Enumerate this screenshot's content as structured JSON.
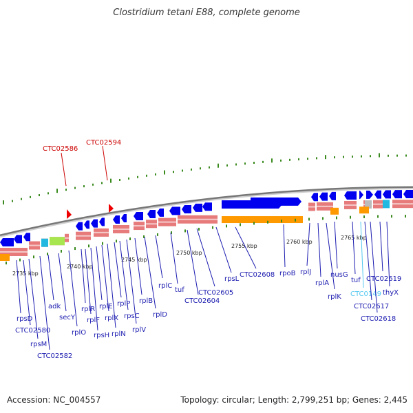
{
  "title": "Clostridium tetani E88, complete genome",
  "footer": {
    "accession": "Accession: NC_004557",
    "topology": "Topology: circular; Length: 2,799,251 bp; Genes: 2,445"
  },
  "colors": {
    "gene_blue": "#0000ee",
    "label_blue": "#1b1bb0",
    "label_red": "#cc0000",
    "label_cyan": "#55c8f0",
    "orange": "#ff9900",
    "salmon": "#e77b7b",
    "green_tick": "#3a8a1e",
    "backbone": "#888888"
  },
  "markers": [
    "CTC02586",
    "CTC02594"
  ],
  "kbp_ticks": [
    "2735 kbp",
    "2740 kbp",
    "2745 kbp",
    "2750 kbp",
    "2755 kbp",
    "2760 kbp",
    "2765 kbp"
  ],
  "genes": [
    "rpsD",
    "CTC02580",
    "rpsM",
    "CTC02582",
    "adk",
    "secY",
    "rplO",
    "rplR",
    "rplF",
    "rpsH",
    "rplE",
    "rplX",
    "rplN",
    "rplP",
    "rpsC",
    "rplV",
    "rplB",
    "rplD",
    "rplC",
    "tuf",
    "CTC02604",
    "CTC02605",
    "rpsL",
    "CTC02608",
    "rpoB",
    "rplJ",
    "rplA",
    "rplK",
    "nusG",
    "tuf",
    "CTC0149",
    "CTC02617",
    "CTC02618",
    "CTC02619",
    "thyX"
  ]
}
